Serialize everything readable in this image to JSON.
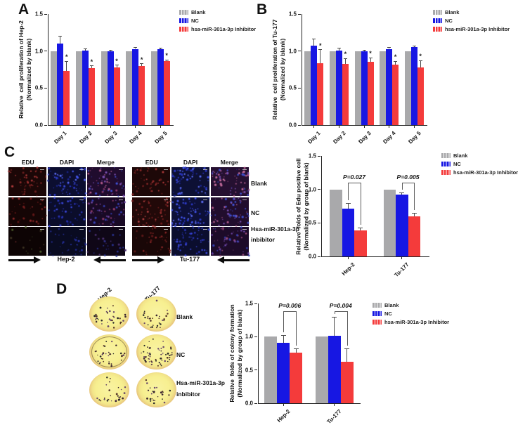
{
  "colors": {
    "blank": "#A9A9AB",
    "nc": "#1717E3",
    "inhibitor": "#F43B3B"
  },
  "legend": [
    "Blank",
    "NC",
    "hsa-miR-301a-3p Inhibitor"
  ],
  "panels": {
    "A": {
      "letter": "A"
    },
    "B": {
      "letter": "B"
    },
    "C": {
      "letter": "C",
      "grids": [
        {
          "cell_line": "Hep-2",
          "columns": [
            "EDU",
            "DAPI",
            "Merge"
          ]
        },
        {
          "cell_line": "Tu-177",
          "columns": [
            "EDU",
            "DAPI",
            "Merge"
          ]
        }
      ],
      "rows": [
        {
          "label": "Blank"
        },
        {
          "label": "NC"
        },
        {
          "label": "Hsa-miR-301a-3p",
          "label2": "inbibitor"
        }
      ]
    },
    "D": {
      "letter": "D",
      "columns": [
        "Hep-2",
        "Tu-177"
      ],
      "rows": [
        {
          "label": "Blank"
        },
        {
          "label": "NC"
        },
        {
          "label": "Hsa-miR-301a-3p",
          "label2": "inbibitor"
        }
      ]
    }
  },
  "chart_data": [
    {
      "id": "A",
      "type": "bar",
      "ylabel": [
        "Relative  cell proliferation of Hep-2",
        "(Normalized by blank)"
      ],
      "categories": [
        "Day 1",
        "Day 2",
        "Day 3",
        "Day 4",
        "Day 5"
      ],
      "series": [
        {
          "name": "Blank",
          "color": "#A9A9AB",
          "values": [
            1.0,
            1.0,
            1.0,
            1.0,
            1.0
          ],
          "errors": [
            0,
            0,
            0,
            0,
            0
          ]
        },
        {
          "name": "NC",
          "color": "#1717E3",
          "values": [
            1.1,
            1.01,
            1.0,
            1.03,
            1.03
          ],
          "errors": [
            0.1,
            0.02,
            0.01,
            0.02,
            0.01
          ]
        },
        {
          "name": "hsa-miR-301a-3p Inhibitor",
          "color": "#F43B3B",
          "values": [
            0.73,
            0.77,
            0.78,
            0.8,
            0.86
          ],
          "errors": [
            0.13,
            0.03,
            0.03,
            0.03,
            0.02
          ],
          "sig": [
            "*",
            "*",
            "*",
            "*",
            "*"
          ]
        }
      ],
      "ylim": [
        0,
        1.5
      ],
      "yticks": [
        "0.0",
        "0.5",
        "1.0",
        "1.5"
      ],
      "grid": false,
      "legend_position": "right"
    },
    {
      "id": "B",
      "type": "bar",
      "ylabel": [
        "Relative  cell proliferation of Tu-177",
        "(Normalized by blank)"
      ],
      "categories": [
        "Day 1",
        "Day 2",
        "Day 3",
        "Day 4",
        "Day 5"
      ],
      "series": [
        {
          "name": "Blank",
          "color": "#A9A9AB",
          "values": [
            1.0,
            1.0,
            1.0,
            1.0,
            1.0
          ],
          "errors": [
            0,
            0,
            0,
            0,
            0
          ]
        },
        {
          "name": "NC",
          "color": "#1717E3",
          "values": [
            1.07,
            1.01,
            1.0,
            1.03,
            1.05
          ],
          "errors": [
            0.09,
            0.03,
            0.01,
            0.02,
            0.02
          ]
        },
        {
          "name": "hsa-miR-301a-3p Inhibitor",
          "color": "#F43B3B",
          "values": [
            0.84,
            0.83,
            0.85,
            0.82,
            0.78
          ],
          "errors": [
            0.18,
            0.07,
            0.06,
            0.04,
            0.09
          ],
          "sig": [
            "*",
            "*",
            "*",
            "*",
            "*"
          ]
        }
      ],
      "ylim": [
        0,
        1.5
      ],
      "yticks": [
        "0.0",
        "0.5",
        "1.0",
        "1.5"
      ],
      "grid": false,
      "legend_position": "right"
    },
    {
      "id": "C",
      "type": "bar",
      "ylabel": [
        "Relative  folds of Edu positive cell",
        "(Normalized by group of blank)"
      ],
      "categories": [
        "Hep-2",
        "Tu-177"
      ],
      "series": [
        {
          "name": "Blank",
          "color": "#A9A9AB",
          "values": [
            1.0,
            1.0
          ],
          "errors": [
            0,
            0
          ]
        },
        {
          "name": "NC",
          "color": "#1717E3",
          "values": [
            0.71,
            0.92
          ],
          "errors": [
            0.08,
            0.03
          ]
        },
        {
          "name": "hsa-miR-301a-3p Inhibitor",
          "color": "#F43B3B",
          "values": [
            0.39,
            0.6
          ],
          "errors": [
            0.03,
            0.04
          ]
        }
      ],
      "annotations": [
        {
          "text": "P=0.027",
          "category": 0
        },
        {
          "text": "P=0.005",
          "category": 1
        }
      ],
      "ylim": [
        0,
        1.5
      ],
      "yticks": [
        "0.0",
        "0.5",
        "1.0",
        "1.5"
      ],
      "grid": false,
      "legend_position": "right"
    },
    {
      "id": "D",
      "type": "bar",
      "ylabel": [
        "Relative  folds of colony formation",
        "(Normalized by group of blank)"
      ],
      "categories": [
        "Hep-2",
        "Tu-177"
      ],
      "series": [
        {
          "name": "Blank",
          "color": "#A9A9AB",
          "values": [
            1.0,
            1.0
          ],
          "errors": [
            0,
            0
          ]
        },
        {
          "name": "NC",
          "color": "#1717E3",
          "values": [
            0.91,
            1.01
          ],
          "errors": [
            0.11,
            0.28
          ]
        },
        {
          "name": "hsa-miR-301a-3p Inhibitor",
          "color": "#F43B3B",
          "values": [
            0.76,
            0.62
          ],
          "errors": [
            0.06,
            0.2
          ]
        }
      ],
      "annotations": [
        {
          "text": "P=0.006",
          "category": 0
        },
        {
          "text": "P=0.004",
          "category": 1
        }
      ],
      "ylim": [
        0,
        1.5
      ],
      "yticks": [
        "0.0",
        "0.5",
        "1.0",
        "1.5"
      ],
      "grid": false,
      "legend_position": "right"
    }
  ]
}
